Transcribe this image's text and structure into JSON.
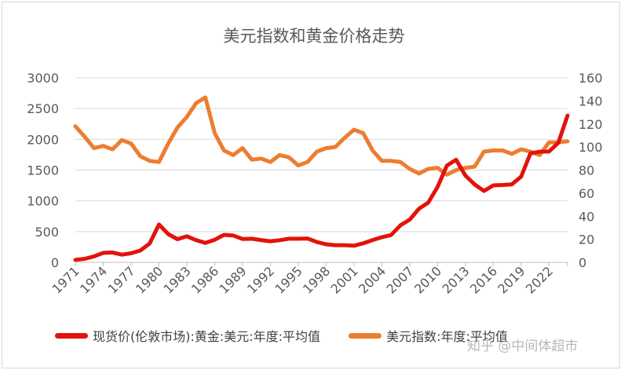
{
  "chart_data": {
    "type": "line",
    "title": "美元指数和黄金价格走势",
    "x": [
      1971,
      1972,
      1973,
      1974,
      1975,
      1976,
      1977,
      1978,
      1979,
      1980,
      1981,
      1982,
      1983,
      1984,
      1985,
      1986,
      1987,
      1988,
      1989,
      1990,
      1991,
      1992,
      1993,
      1994,
      1995,
      1996,
      1997,
      1998,
      1999,
      2000,
      2001,
      2002,
      2003,
      2004,
      2005,
      2006,
      2007,
      2008,
      2009,
      2010,
      2011,
      2012,
      2013,
      2014,
      2015,
      2016,
      2017,
      2018,
      2019,
      2020,
      2021,
      2022,
      2023,
      2024
    ],
    "x_tick_labels": [
      "1971",
      "1974",
      "1977",
      "1980",
      "1983",
      "1986",
      "1989",
      "1992",
      "1995",
      "1998",
      "2001",
      "2004",
      "2007",
      "2010",
      "2013",
      "2016",
      "2019",
      "2022"
    ],
    "series": [
      {
        "name": "现货价(伦敦市场):黄金:美元:年度:平均值",
        "axis": "left",
        "color": "#e3120b",
        "values": [
          41,
          58,
          97,
          154,
          161,
          125,
          148,
          193,
          306,
          615,
          460,
          376,
          424,
          361,
          317,
          368,
          447,
          437,
          381,
          384,
          362,
          344,
          360,
          384,
          384,
          388,
          331,
          294,
          279,
          279,
          271,
          310,
          363,
          409,
          444,
          603,
          695,
          872,
          972,
          1225,
          1572,
          1669,
          1411,
          1266,
          1160,
          1251,
          1257,
          1268,
          1393,
          1770,
          1799,
          1801,
          1943,
          2386
        ]
      },
      {
        "name": "美元指数:年度:平均值",
        "axis": "right",
        "color": "#ed7d31",
        "values": [
          118,
          109,
          99,
          101,
          98,
          106,
          103,
          92,
          88,
          87,
          103,
          117,
          126,
          138,
          143,
          112,
          97,
          93,
          99,
          89,
          90,
          87,
          93,
          91,
          84,
          87,
          96,
          99,
          100,
          108,
          115,
          112,
          97,
          88,
          88,
          87,
          81,
          77,
          81,
          82,
          76,
          80,
          82,
          83,
          96,
          97,
          97,
          94,
          98,
          96,
          93,
          104,
          104,
          105
        ]
      }
    ],
    "left_axis": {
      "ylim": [
        0,
        3000
      ],
      "ticks": [
        "0",
        "500",
        "1000",
        "1500",
        "2000",
        "2500",
        "3000"
      ]
    },
    "right_axis": {
      "ylim": [
        0,
        160
      ],
      "ticks": [
        "0",
        "20",
        "40",
        "60",
        "80",
        "100",
        "120",
        "140",
        "160"
      ]
    },
    "grid": true,
    "legend": "bottom"
  },
  "watermark": "知乎 @中间体超市"
}
